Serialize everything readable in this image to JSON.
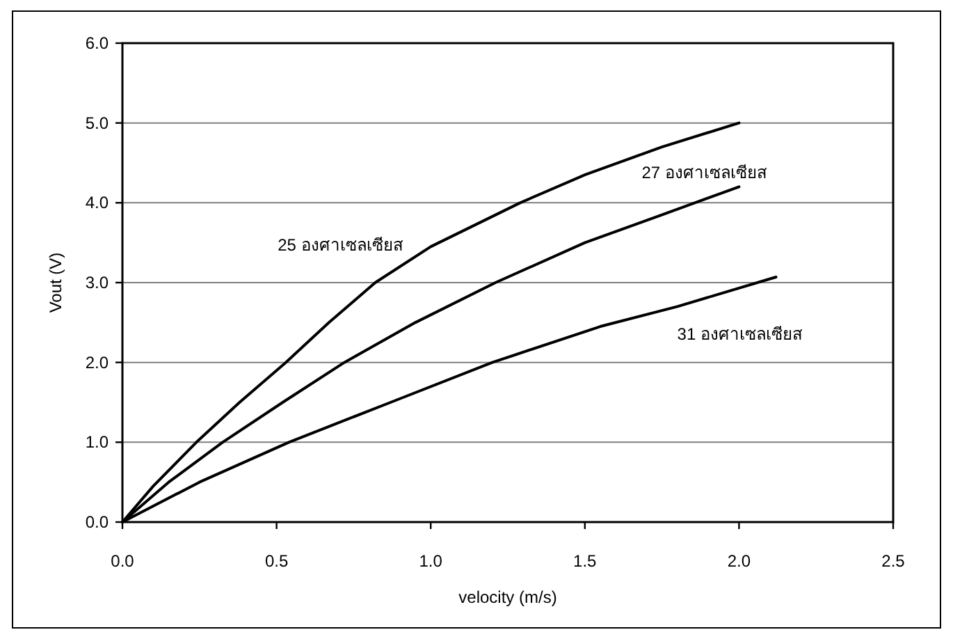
{
  "chart_data": {
    "type": "line",
    "xlabel": "velocity (m/s)",
    "ylabel": "Vout (V)",
    "xlim": [
      0,
      2.5
    ],
    "xticks": [
      {
        "value": 0,
        "label": "0.0"
      },
      {
        "value": 0.5,
        "label": "0.5"
      },
      {
        "value": 1,
        "label": "1.0"
      },
      {
        "value": 1.5,
        "label": "1.5"
      },
      {
        "value": 2,
        "label": "2.0"
      },
      {
        "value": 2.5,
        "label": "2.5"
      }
    ],
    "ylim": [
      0,
      6
    ],
    "yticks": [
      {
        "value": 0,
        "label": "0.0"
      },
      {
        "value": 1,
        "label": "1.0"
      },
      {
        "value": 2,
        "label": "2.0"
      },
      {
        "value": 3,
        "label": "3.0"
      },
      {
        "value": 4,
        "label": "4.0"
      },
      {
        "value": 5,
        "label": "5.0"
      },
      {
        "value": 6,
        "label": "6.0"
      }
    ],
    "grid": "y",
    "series": [
      {
        "name": "25 องศาเซลเซียส",
        "color": "#000000",
        "x": [
          0,
          0.1,
          0.24,
          0.38,
          0.53,
          0.67,
          0.82,
          1.0,
          1.29,
          1.5,
          1.75,
          2.0
        ],
        "values": [
          0,
          0.45,
          1.0,
          1.5,
          2.0,
          2.5,
          3.0,
          3.45,
          4.0,
          4.35,
          4.7,
          5.0
        ]
      },
      {
        "name": "27 องศาเซลเซียส",
        "color": "#000000",
        "x": [
          0,
          0.15,
          0.325,
          0.52,
          0.72,
          0.95,
          1.21,
          1.5,
          1.75,
          2.0
        ],
        "values": [
          0,
          0.5,
          1.0,
          1.5,
          2.0,
          2.5,
          3.0,
          3.5,
          3.85,
          4.2
        ]
      },
      {
        "name": "31 องศาเซลเซียส",
        "color": "#000000",
        "x": [
          0,
          0.25,
          0.54,
          0.87,
          1.2,
          1.55,
          1.8,
          2.12
        ],
        "values": [
          0,
          0.5,
          1.0,
          1.5,
          2.0,
          2.45,
          2.7,
          3.07
        ]
      }
    ]
  }
}
